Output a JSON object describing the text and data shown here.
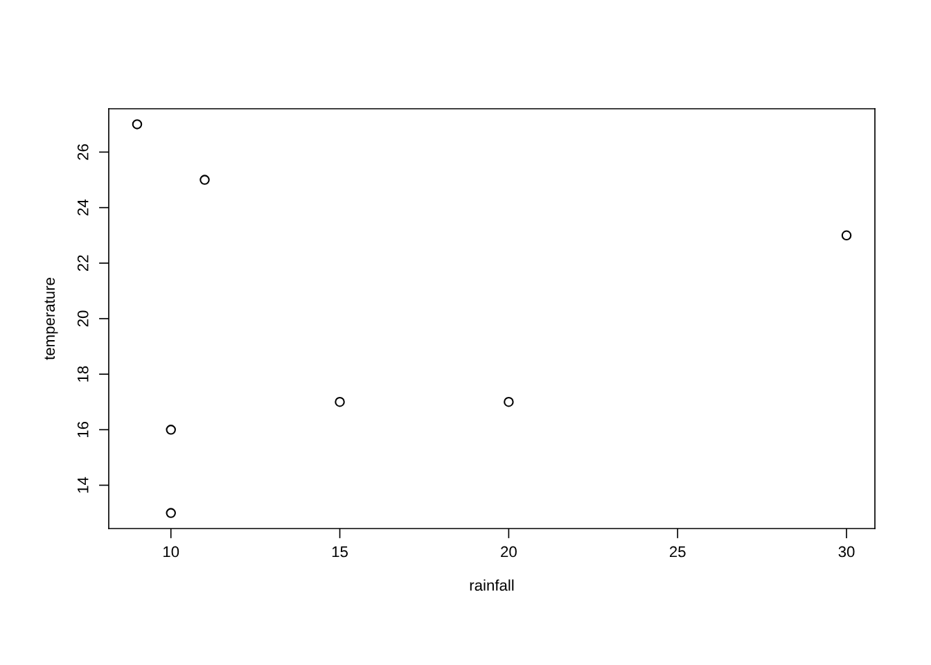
{
  "chart_data": {
    "type": "scatter",
    "xlabel": "rainfall",
    "ylabel": "temperature",
    "x": [
      9,
      11,
      30,
      10,
      15,
      20,
      10
    ],
    "values": [
      27,
      25,
      23,
      16,
      17,
      17,
      13
    ],
    "color": "#000000",
    "marker": "circle",
    "xlim": [
      8.16,
      30.84
    ],
    "ylim": [
      12.44,
      27.56
    ],
    "xticks": [
      10,
      15,
      20,
      25,
      30
    ],
    "yticks": [
      14,
      16,
      18,
      20,
      22,
      24,
      26
    ],
    "grid": false,
    "legend": false
  }
}
